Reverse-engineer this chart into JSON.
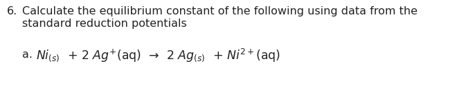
{
  "background_color": "#ffffff",
  "text_color": "#222222",
  "fig_width": 6.6,
  "fig_height": 1.28,
  "dpi": 100,
  "fs_main": 11.5,
  "fs_eq": 12.5,
  "line1": "6.   Calculate the equilibrium constant of the following using data from the",
  "line2": "      standard reduction potentials",
  "eq_prefix": "a.  ",
  "eq_math": "$\\mathit{Ni}_{\\,(s)}\\; + 2\\;\\mathit{Ag}^{+}\\mathrm{(aq)} \\rightarrow 2\\;\\mathit{Ag}_{\\,(s)}\\; + \\mathit{Ni}^{2+}\\mathrm{(aq)}$"
}
